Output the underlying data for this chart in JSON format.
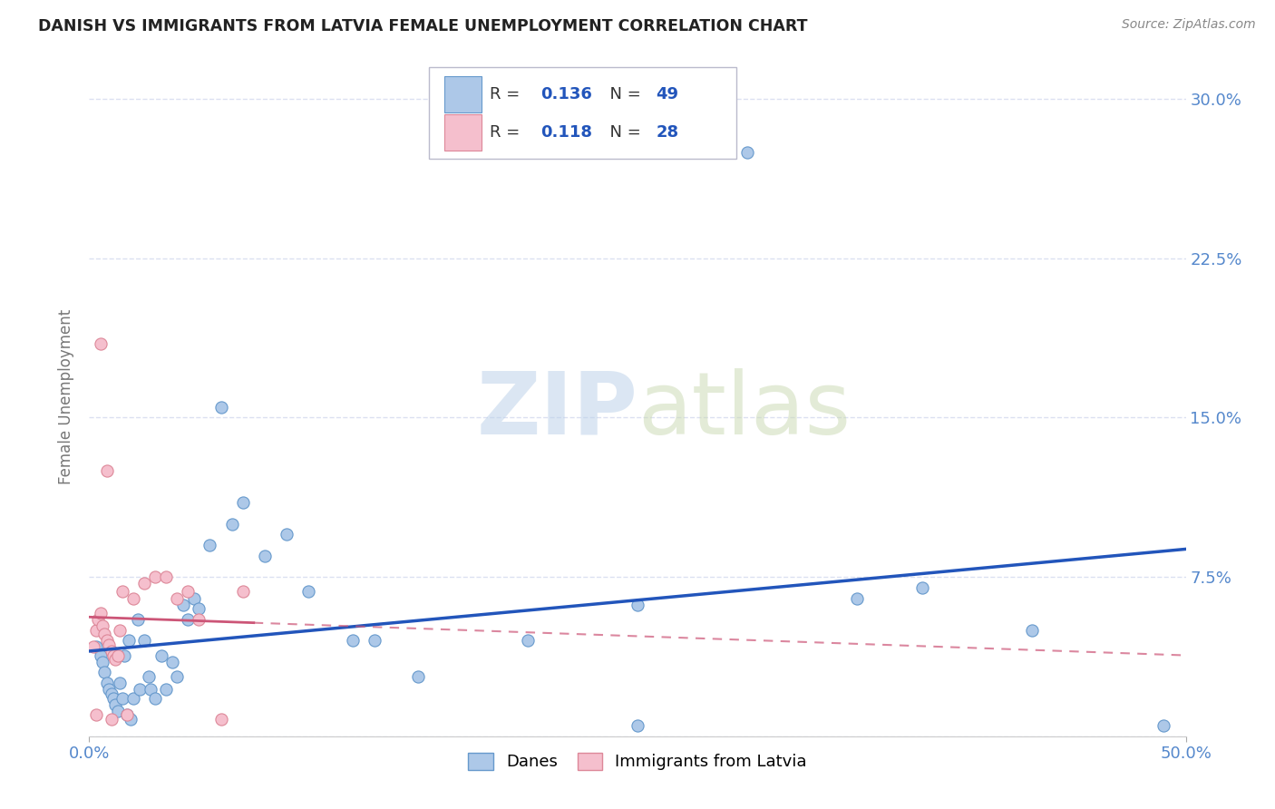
{
  "title": "DANISH VS IMMIGRANTS FROM LATVIA FEMALE UNEMPLOYMENT CORRELATION CHART",
  "source": "Source: ZipAtlas.com",
  "ylabel": "Female Unemployment",
  "xlim": [
    0.0,
    0.5
  ],
  "ylim": [
    0.0,
    0.32
  ],
  "yticks": [
    0.0,
    0.075,
    0.15,
    0.225,
    0.3
  ],
  "ytick_labels": [
    "",
    "7.5%",
    "15.0%",
    "22.5%",
    "30.0%"
  ],
  "danes_color": "#adc8e8",
  "danes_edge_color": "#6699cc",
  "latvia_color": "#f5bfcd",
  "latvia_edge_color": "#dd8899",
  "danes_line_color": "#2255bb",
  "latvia_line_color": "#cc5577",
  "legend_R_danes": "0.136",
  "legend_N_danes": "49",
  "legend_R_latvia": "0.118",
  "legend_N_latvia": "28",
  "background_color": "#ffffff",
  "grid_color": "#d8ddf0",
  "danes_x": [
    0.003,
    0.005,
    0.006,
    0.007,
    0.008,
    0.009,
    0.01,
    0.011,
    0.012,
    0.013,
    0.014,
    0.015,
    0.016,
    0.017,
    0.018,
    0.019,
    0.02,
    0.022,
    0.023,
    0.025,
    0.027,
    0.028,
    0.03,
    0.033,
    0.035,
    0.038,
    0.04,
    0.043,
    0.045,
    0.048,
    0.05,
    0.055,
    0.06,
    0.065,
    0.07,
    0.08,
    0.09,
    0.1,
    0.12,
    0.13,
    0.15,
    0.2,
    0.25,
    0.3,
    0.35,
    0.38,
    0.43,
    0.49,
    0.25
  ],
  "danes_y": [
    0.042,
    0.038,
    0.035,
    0.03,
    0.025,
    0.022,
    0.02,
    0.018,
    0.015,
    0.012,
    0.025,
    0.018,
    0.038,
    0.01,
    0.045,
    0.008,
    0.018,
    0.055,
    0.022,
    0.045,
    0.028,
    0.022,
    0.018,
    0.038,
    0.022,
    0.035,
    0.028,
    0.062,
    0.055,
    0.065,
    0.06,
    0.09,
    0.155,
    0.1,
    0.11,
    0.085,
    0.095,
    0.068,
    0.045,
    0.045,
    0.028,
    0.045,
    0.062,
    0.275,
    0.065,
    0.07,
    0.05,
    0.005,
    0.005
  ],
  "latvia_x": [
    0.002,
    0.003,
    0.004,
    0.005,
    0.006,
    0.007,
    0.008,
    0.009,
    0.01,
    0.011,
    0.012,
    0.013,
    0.014,
    0.015,
    0.017,
    0.02,
    0.025,
    0.03,
    0.035,
    0.04,
    0.045,
    0.05,
    0.06,
    0.07,
    0.005,
    0.008,
    0.01,
    0.003
  ],
  "latvia_y": [
    0.042,
    0.05,
    0.055,
    0.058,
    0.052,
    0.048,
    0.045,
    0.043,
    0.04,
    0.038,
    0.036,
    0.038,
    0.05,
    0.068,
    0.01,
    0.065,
    0.072,
    0.075,
    0.075,
    0.065,
    0.068,
    0.055,
    0.008,
    0.068,
    0.185,
    0.125,
    0.008,
    0.01
  ]
}
